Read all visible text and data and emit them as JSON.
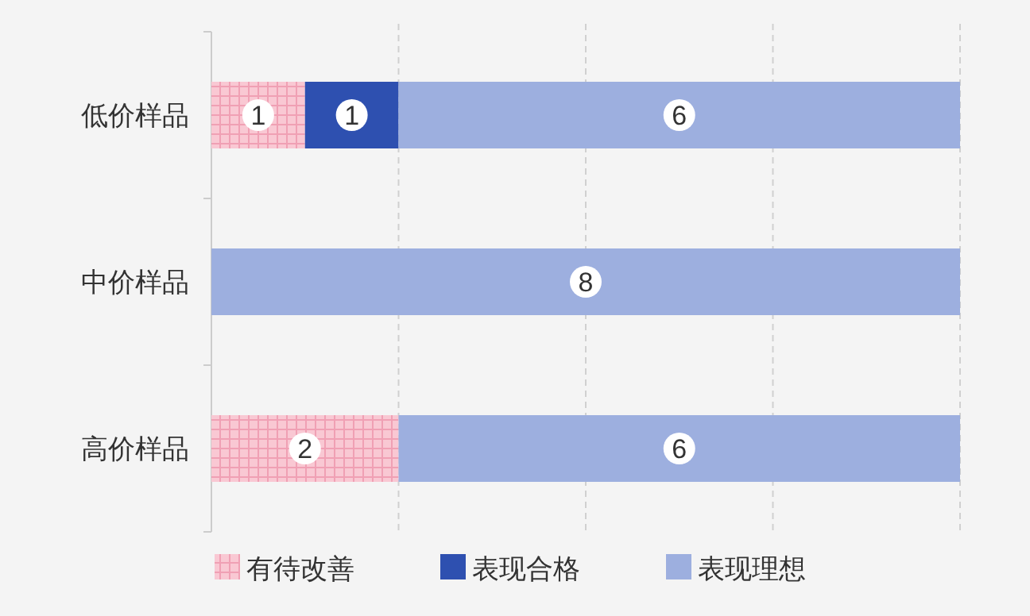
{
  "chart_data": {
    "type": "bar",
    "orientation": "horizontal",
    "stacked": true,
    "categories": [
      "低价样品",
      "中价样品",
      "高价样品"
    ],
    "series": [
      {
        "name": "有待改善",
        "color": "#f9c8d3",
        "values": [
          1,
          null,
          2
        ]
      },
      {
        "name": "表现合格",
        "color": "#2e50b0",
        "values": [
          1,
          null,
          null
        ]
      },
      {
        "name": "表现理想",
        "color": "#9dafdf",
        "values": [
          6,
          8,
          6
        ]
      }
    ],
    "xlim": [
      0,
      8
    ],
    "xticks": [
      {
        "value": 0,
        "label": null
      },
      {
        "value": 2,
        "label": null
      },
      {
        "value": 4,
        "label": null
      },
      {
        "value": 6,
        "label": null
      },
      {
        "value": 8,
        "label": null
      }
    ],
    "tick_labels": "y",
    "grid": "x",
    "legend": "bottom",
    "data_labels": true
  }
}
